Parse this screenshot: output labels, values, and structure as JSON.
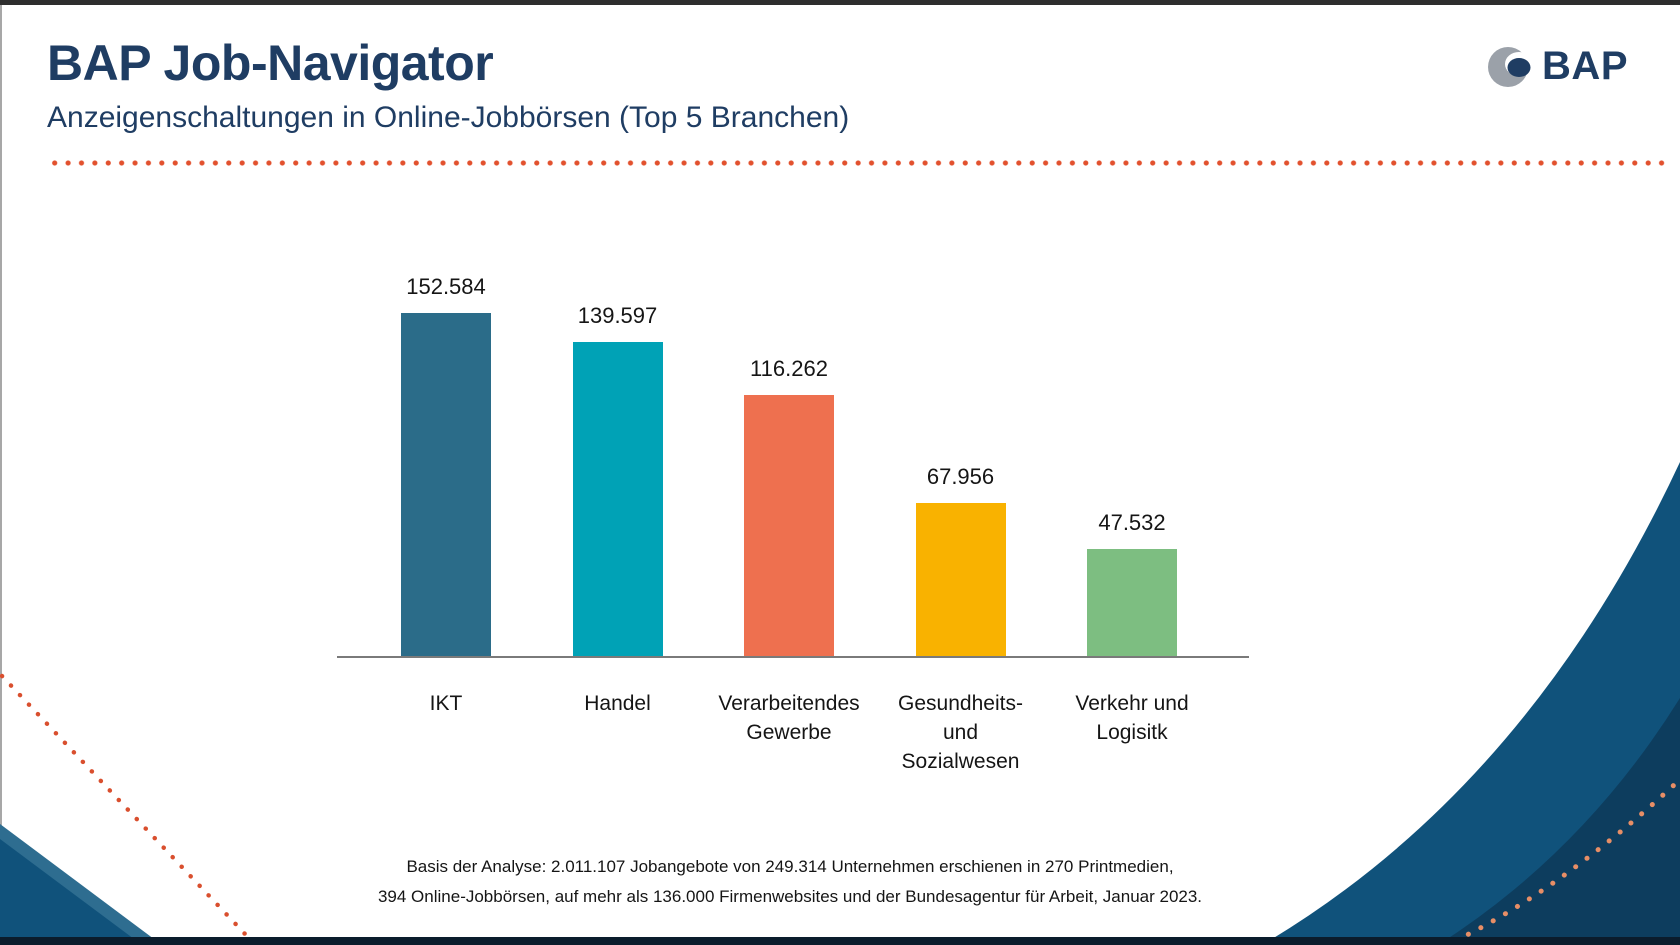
{
  "header": {
    "title": "BAP Job-Navigator",
    "subtitle": "Anzeigenschaltungen in Online-Jobbörsen (Top 5 Branchen)",
    "logo_text": "BAP"
  },
  "chart_data": {
    "type": "bar",
    "title": "Anzeigenschaltungen in Online-Jobbörsen (Top 5 Branchen)",
    "categories": [
      "IKT",
      "Handel",
      "Verarbeitendes Gewerbe",
      "Gesundheits- und Sozialwesen",
      "Verkehr und Logisitk"
    ],
    "categories_multiline": [
      "IKT",
      "Handel",
      "Verarbeitendes\nGewerbe",
      "Gesundheits-\nund\nSozialwesen",
      "Verkehr und\nLogisitk"
    ],
    "values": [
      152584,
      139597,
      116262,
      67956,
      47532
    ],
    "value_labels": [
      "152.584",
      "139.597",
      "116.262",
      "67.956",
      "47.532"
    ],
    "bar_colors": [
      "#2b6c89",
      "#00a2b6",
      "#ee704f",
      "#f9b200",
      "#7dbe81"
    ],
    "xlabel": "",
    "ylabel": "",
    "ylim": [
      0,
      160000
    ],
    "grid": false,
    "legend": false
  },
  "footnote": {
    "line1": "Basis der Analyse: 2.011.107 Jobangebote von 249.314 Unternehmen erschienen in 270 Printmedien,",
    "line2": "394 Online-Jobbörsen, auf mehr als 136.000 Firmenwebsites und der Bundesagentur für Arbeit, Januar 2023."
  },
  "colors": {
    "navy_text": "#1f3d63",
    "divider_dot": "#e2512e",
    "axis": "#7a7a7a",
    "corner_navy": "#10527b",
    "corner_navy_dark": "#0d3d5e",
    "wedge_edge": "#2e6d90",
    "corner_dots": "#e78e66",
    "diag_dots": "#d94f2e",
    "logo_gray": "#9ba1a9",
    "edge_line": "#8a8a8a"
  }
}
